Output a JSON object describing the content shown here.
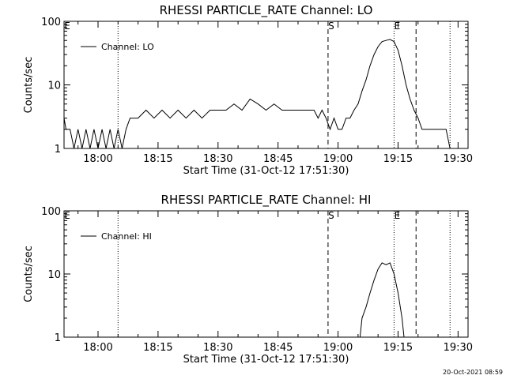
{
  "chart_data": [
    {
      "type": "line",
      "title": "RHESSI PARTICLE_RATE Channel: LO",
      "xlabel": "Start Time (31-Oct-12 17:51:30)",
      "ylabel": "Counts/sec",
      "yscale": "log",
      "ylim": [
        1,
        100
      ],
      "xlim": [
        "17:51:30",
        "19:32:30"
      ],
      "x_ticks": [
        "18:00",
        "18:15",
        "18:30",
        "18:45",
        "19:00",
        "19:15",
        "19:30"
      ],
      "y_ticks": [
        "1",
        "10",
        "100"
      ],
      "legend": "top-left",
      "grid": false,
      "series": [
        {
          "name": "Channel: LO",
          "points": [
            [
              "17:51:30",
              3
            ],
            [
              "17:52:00",
              2
            ],
            [
              "17:53:00",
              2
            ],
            [
              "17:54:00",
              1
            ],
            [
              "17:55:00",
              2
            ],
            [
              "17:56:00",
              1
            ],
            [
              "17:57:00",
              2
            ],
            [
              "17:58:00",
              1
            ],
            [
              "17:59:00",
              2
            ],
            [
              "18:00:00",
              1
            ],
            [
              "18:01:00",
              2
            ],
            [
              "18:02:00",
              1
            ],
            [
              "18:03:00",
              2
            ],
            [
              "18:04:00",
              1
            ],
            [
              "18:05:00",
              2
            ],
            [
              "18:06:00",
              1
            ],
            [
              "18:07:00",
              2
            ],
            [
              "18:08:00",
              3
            ],
            [
              "18:10:00",
              3
            ],
            [
              "18:12:00",
              4
            ],
            [
              "18:14:00",
              3
            ],
            [
              "18:16:00",
              4
            ],
            [
              "18:18:00",
              3
            ],
            [
              "18:20:00",
              4
            ],
            [
              "18:22:00",
              3
            ],
            [
              "18:24:00",
              4
            ],
            [
              "18:26:00",
              3
            ],
            [
              "18:28:00",
              4
            ],
            [
              "18:30:00",
              4
            ],
            [
              "18:32:00",
              4
            ],
            [
              "18:34:00",
              5
            ],
            [
              "18:36:00",
              4
            ],
            [
              "18:38:00",
              6
            ],
            [
              "18:40:00",
              5
            ],
            [
              "18:42:00",
              4
            ],
            [
              "18:44:00",
              5
            ],
            [
              "18:46:00",
              4
            ],
            [
              "18:48:00",
              4
            ],
            [
              "18:50:00",
              4
            ],
            [
              "18:52:00",
              4
            ],
            [
              "18:54:00",
              4
            ],
            [
              "18:55:00",
              3
            ],
            [
              "18:56:00",
              4
            ],
            [
              "18:57:00",
              3
            ],
            [
              "18:58:00",
              2
            ],
            [
              "18:59:00",
              3
            ],
            [
              "19:00:00",
              2
            ],
            [
              "19:01:00",
              2
            ],
            [
              "19:02:00",
              3
            ],
            [
              "19:03:00",
              3
            ],
            [
              "19:04:00",
              4
            ],
            [
              "19:05:00",
              5
            ],
            [
              "19:06:00",
              8
            ],
            [
              "19:07:00",
              12
            ],
            [
              "19:08:00",
              20
            ],
            [
              "19:09:00",
              30
            ],
            [
              "19:10:00",
              40
            ],
            [
              "19:11:00",
              48
            ],
            [
              "19:12:00",
              50
            ],
            [
              "19:13:00",
              52
            ],
            [
              "19:14:00",
              48
            ],
            [
              "19:15:00",
              35
            ],
            [
              "19:16:00",
              20
            ],
            [
              "19:17:00",
              10
            ],
            [
              "19:18:00",
              6
            ],
            [
              "19:19:00",
              4
            ],
            [
              "19:20:00",
              3
            ],
            [
              "19:21:00",
              2
            ],
            [
              "19:22:00",
              2
            ],
            [
              "19:24:00",
              2
            ],
            [
              "19:26:00",
              2
            ],
            [
              "19:27:00",
              2
            ],
            [
              "19:28:00",
              1
            ]
          ]
        }
      ],
      "markers": [
        {
          "label": "E",
          "time": "17:51:30",
          "style": "dotted"
        },
        {
          "label": "",
          "time": "18:05:00",
          "style": "dotted"
        },
        {
          "label": "S",
          "time": "18:57:30",
          "style": "dashed"
        },
        {
          "label": "E",
          "time": "19:14:00",
          "style": "dotted"
        },
        {
          "label": "",
          "time": "19:19:30",
          "style": "dashed"
        },
        {
          "label": "",
          "time": "19:28:00",
          "style": "dotted"
        }
      ]
    },
    {
      "type": "line",
      "title": "RHESSI PARTICLE_RATE Channel: HI",
      "xlabel": "Start Time (31-Oct-12 17:51:30)",
      "ylabel": "Counts/sec",
      "yscale": "log",
      "ylim": [
        1,
        100
      ],
      "xlim": [
        "17:51:30",
        "19:32:30"
      ],
      "x_ticks": [
        "18:00",
        "18:15",
        "18:30",
        "18:45",
        "19:00",
        "19:15",
        "19:30"
      ],
      "y_ticks": [
        "1",
        "10",
        "100"
      ],
      "legend": "top-left",
      "grid": false,
      "series": [
        {
          "name": "Channel: HI",
          "points": [
            [
              "19:05:30",
              1
            ],
            [
              "19:06:00",
              2
            ],
            [
              "19:07:00",
              3
            ],
            [
              "19:08:00",
              5
            ],
            [
              "19:09:00",
              8
            ],
            [
              "19:10:00",
              12
            ],
            [
              "19:11:00",
              15
            ],
            [
              "19:12:00",
              14
            ],
            [
              "19:13:00",
              15
            ],
            [
              "19:14:00",
              10
            ],
            [
              "19:15:00",
              5
            ],
            [
              "19:16:00",
              2
            ],
            [
              "19:16:30",
              1
            ]
          ]
        }
      ],
      "markers": [
        {
          "label": "E",
          "time": "17:51:30",
          "style": "dotted"
        },
        {
          "label": "",
          "time": "18:05:00",
          "style": "dotted"
        },
        {
          "label": "S",
          "time": "18:57:30",
          "style": "dashed"
        },
        {
          "label": "E",
          "time": "19:14:00",
          "style": "dotted"
        },
        {
          "label": "",
          "time": "19:19:30",
          "style": "dashed"
        },
        {
          "label": "",
          "time": "19:28:00",
          "style": "dotted"
        }
      ]
    }
  ],
  "footer": {
    "timestamp": "20-Oct-2021 08:59"
  }
}
